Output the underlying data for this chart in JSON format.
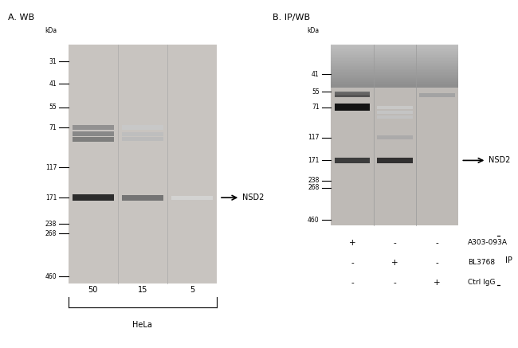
{
  "panel_A_title": "A. WB",
  "panel_B_title": "B. IP/WB",
  "kda_label": "kDa",
  "marker_positions_A": [
    460,
    268,
    238,
    171,
    117,
    71,
    55,
    41,
    31
  ],
  "marker_positions_B": [
    460,
    268,
    238,
    171,
    117,
    71,
    55,
    41
  ],
  "nsd2_label": "NSD2",
  "panel_A_lanes": [
    "50",
    "15",
    "5"
  ],
  "panel_A_group": "HeLa",
  "panel_B_rows": [
    [
      "+",
      "-",
      "-",
      "A303-093A"
    ],
    [
      "-",
      "+",
      "-",
      "BL3768"
    ],
    [
      "-",
      "-",
      "+",
      "Ctrl IgG"
    ]
  ],
  "panel_B_bracket_label": "IP",
  "bg_color": "#d8d4d0",
  "bg_color_B": "#c8c4c0",
  "white": "#ffffff",
  "black": "#000000",
  "dark_gray": "#1a1a1a",
  "mid_gray": "#888888",
  "light_gray": "#bbbbbb"
}
